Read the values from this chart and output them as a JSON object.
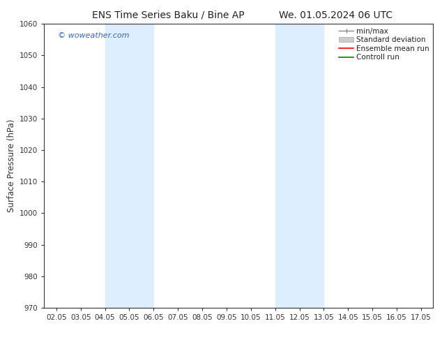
{
  "title_left": "ENS Time Series Baku / Bine AP",
  "title_right": "We. 01.05.2024 06 UTC",
  "ylabel": "Surface Pressure (hPa)",
  "ylim": [
    970,
    1060
  ],
  "yticks": [
    970,
    980,
    990,
    1000,
    1010,
    1020,
    1030,
    1040,
    1050,
    1060
  ],
  "xlim": [
    1.5,
    17.5
  ],
  "xtick_labels": [
    "02.05",
    "03.05",
    "04.05",
    "05.05",
    "06.05",
    "07.05",
    "08.05",
    "09.05",
    "10.05",
    "11.05",
    "12.05",
    "13.05",
    "14.05",
    "15.05",
    "16.05",
    "17.05"
  ],
  "xtick_positions": [
    2.0,
    3.0,
    4.0,
    5.0,
    6.0,
    7.0,
    8.0,
    9.0,
    10.0,
    11.0,
    12.0,
    13.0,
    14.0,
    15.0,
    16.0,
    17.0
  ],
  "shaded_regions": [
    {
      "x_start": 4.0,
      "x_end": 6.0
    },
    {
      "x_start": 11.0,
      "x_end": 13.0
    }
  ],
  "shaded_color": "#ddeeff",
  "watermark_text": "© woweather.com",
  "watermark_color": "#3366bb",
  "bg_color": "#ffffff",
  "plot_bg_color": "#ffffff",
  "title_fontsize": 10,
  "tick_fontsize": 7.5,
  "ylabel_fontsize": 8.5,
  "legend_fontsize": 7.5,
  "spine_color": "#333333",
  "tick_color": "#333333"
}
